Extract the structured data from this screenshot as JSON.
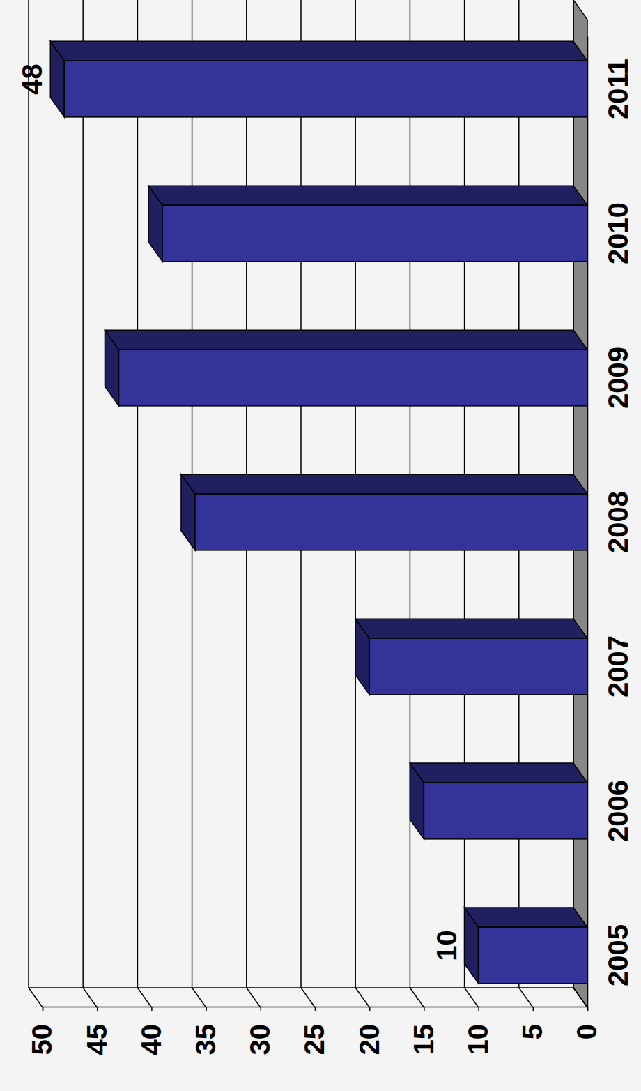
{
  "chart_data": {
    "type": "bar",
    "categories": [
      "2005",
      "2006",
      "2007",
      "2008",
      "2009",
      "2010",
      "2011"
    ],
    "values": [
      10,
      15,
      20,
      36,
      43,
      39,
      48
    ],
    "color": "#333399",
    "ylim": [
      0,
      50
    ],
    "yticks": [
      0,
      5,
      10,
      15,
      20,
      25,
      30,
      35,
      40,
      45,
      50
    ],
    "grid": true,
    "annotations": [
      {
        "category": "2005",
        "value": 10
      },
      {
        "category": "2011",
        "value": 48
      }
    ]
  }
}
